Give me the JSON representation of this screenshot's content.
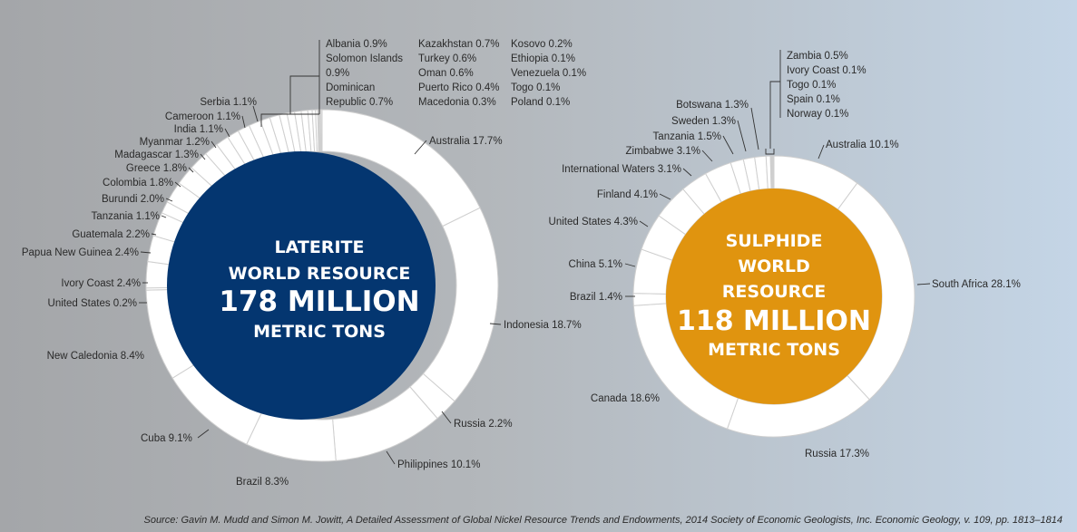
{
  "chart_data": [
    {
      "type": "pie",
      "center_text": [
        "LATERITE",
        "WORLD RESOURCE",
        "178 MILLION",
        "METRIC TONS"
      ],
      "center_color": "#043670",
      "slices": [
        {
          "label": "Australia",
          "value": 17.7
        },
        {
          "label": "Indonesia",
          "value": 18.7
        },
        {
          "label": "Russia",
          "value": 2.2
        },
        {
          "label": "Philippines",
          "value": 10.1
        },
        {
          "label": "Brazil",
          "value": 8.3
        },
        {
          "label": "Cuba",
          "value": 9.1
        },
        {
          "label": "New Caledonia",
          "value": 8.4
        },
        {
          "label": "United States",
          "value": 0.2
        },
        {
          "label": "Ivory Coast",
          "value": 2.4
        },
        {
          "label": "Papua New Guinea",
          "value": 2.4
        },
        {
          "label": "Guatemala",
          "value": 2.2
        },
        {
          "label": "Tanzania",
          "value": 1.1
        },
        {
          "label": "Burundi",
          "value": 2.0
        },
        {
          "label": "Colombia",
          "value": 1.8
        },
        {
          "label": "Greece",
          "value": 1.8
        },
        {
          "label": "Madagascar",
          "value": 1.3
        },
        {
          "label": "Myanmar",
          "value": 1.2
        },
        {
          "label": "India",
          "value": 1.1
        },
        {
          "label": "Cameroon",
          "value": 1.1
        },
        {
          "label": "Serbia",
          "value": 1.1
        },
        {
          "label": "Albania",
          "value": 0.9
        },
        {
          "label": "Solomon Islands",
          "value": 0.9
        },
        {
          "label": "Dominican Republic",
          "value": 0.7
        },
        {
          "label": "Kazakhstan",
          "value": 0.7
        },
        {
          "label": "Turkey",
          "value": 0.6
        },
        {
          "label": "Oman",
          "value": 0.6
        },
        {
          "label": "Puerto Rico",
          "value": 0.4
        },
        {
          "label": "Macedonia",
          "value": 0.3
        },
        {
          "label": "Kosovo",
          "value": 0.2
        },
        {
          "label": "Ethiopia",
          "value": 0.1
        },
        {
          "label": "Venezuela",
          "value": 0.1
        },
        {
          "label": "Togo",
          "value": 0.1
        },
        {
          "label": "Poland",
          "value": 0.1
        }
      ],
      "label_texts": {
        "Australia": "Australia 17.7%",
        "Indonesia": "Indonesia 18.7%",
        "Russia": "Russia 2.2%",
        "Philippines": "Philippines 10.1%",
        "Brazil": "Brazil 8.3%",
        "Cuba": "Cuba 9.1%",
        "New Caledonia": "New Caledonia 8.4%",
        "United States": "United States 0.2%",
        "Ivory Coast": "Ivory Coast 2.4%",
        "Papua New Guinea": "Papua New Guinea 2.4%",
        "Guatemala": "Guatemala 2.2%",
        "Tanzania": "Tanzania 1.1%",
        "Burundi": "Burundi 2.0%",
        "Colombia": "Colombia 1.8%",
        "Greece": "Greece 1.8%",
        "Madagascar": "Madagascar 1.3%",
        "Myanmar": "Myanmar 1.2%",
        "India": "India 1.1%",
        "Cameroon": "Cameroon 1.1%",
        "Serbia": "Serbia 1.1%"
      },
      "grouped_label_columns": [
        [
          "Albania 0.9%",
          "Solomon Islands",
          "0.9%",
          "Dominican",
          "Republic 0.7%"
        ],
        [
          "Kazakhstan 0.7%",
          "Turkey 0.6%",
          "Oman 0.6%",
          "Puerto Rico 0.4%",
          "Macedonia 0.3%"
        ],
        [
          "Kosovo 0.2%",
          "Ethiopia 0.1%",
          "Venezuela 0.1%",
          "Togo 0.1%",
          "Poland 0.1%"
        ]
      ]
    },
    {
      "type": "pie",
      "center_text": [
        "SULPHIDE",
        "WORLD",
        "RESOURCE",
        "118 MILLION",
        "METRIC TONS"
      ],
      "center_color": "#e0940f",
      "slices": [
        {
          "label": "Australia",
          "value": 10.1
        },
        {
          "label": "South Africa",
          "value": 28.1
        },
        {
          "label": "Russia",
          "value": 17.3
        },
        {
          "label": "Canada",
          "value": 18.6
        },
        {
          "label": "Brazil",
          "value": 1.4
        },
        {
          "label": "China",
          "value": 5.1
        },
        {
          "label": "United States",
          "value": 4.3
        },
        {
          "label": "Finland",
          "value": 4.1
        },
        {
          "label": "International Waters",
          "value": 3.1
        },
        {
          "label": "Zimbabwe",
          "value": 3.1
        },
        {
          "label": "Tanzania",
          "value": 1.5
        },
        {
          "label": "Sweden",
          "value": 1.3
        },
        {
          "label": "Botswana",
          "value": 1.3
        },
        {
          "label": "Zambia",
          "value": 0.5
        },
        {
          "label": "Ivory Coast",
          "value": 0.1
        },
        {
          "label": "Togo",
          "value": 0.1
        },
        {
          "label": "Spain",
          "value": 0.1
        },
        {
          "label": "Norway",
          "value": 0.1
        }
      ],
      "label_texts": {
        "Australia": "Australia 10.1%",
        "South Africa": "South Africa 28.1%",
        "Russia": "Russia 17.3%",
        "Canada": "Canada 18.6%",
        "Brazil": "Brazil 1.4%",
        "China": "China 5.1%",
        "United States": "United States 4.3%",
        "Finland": "Finland 4.1%",
        "International Waters": "International Waters 3.1%",
        "Zimbabwe": "Zimbabwe 3.1%",
        "Tanzania": "Tanzania 1.5%",
        "Sweden": "Sweden 1.3%",
        "Botswana": "Botswana 1.3%"
      },
      "grouped_label_columns": [
        [
          "Zambia 0.5%",
          "Ivory Coast 0.1%",
          "Togo 0.1%",
          "Spain 0.1%",
          "Norway 0.1%"
        ]
      ]
    }
  ],
  "source": "Source: Gavin M. Mudd and Simon M. Jowitt, A Detailed Assessment of Global Nickel Resource Trends and Endowments, 2014 Society of Economic Geologists, Inc. Economic Geology, v. 109, pp. 1813–1814"
}
